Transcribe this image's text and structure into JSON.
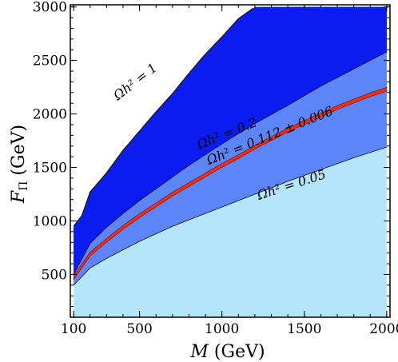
{
  "chart_data": {
    "type": "area",
    "xlabel": "M (GeV)",
    "ylabel": "F_Π (GeV)",
    "xlim": [
      80,
      2020
    ],
    "ylim": [
      100,
      3020
    ],
    "grid": false,
    "x_ticks": [
      {
        "value": 100,
        "label": "100"
      },
      {
        "value": 500,
        "label": "500"
      },
      {
        "value": 1000,
        "label": "1000"
      },
      {
        "value": 1500,
        "label": "1500"
      },
      {
        "value": 2000,
        "label": "2000"
      }
    ],
    "y_ticks": [
      {
        "value": 500,
        "label": "500"
      },
      {
        "value": 1000,
        "label": "1000"
      },
      {
        "value": 1500,
        "label": "1500"
      },
      {
        "value": 2000,
        "label": "2000"
      },
      {
        "value": 2500,
        "label": "2500"
      },
      {
        "value": 3000,
        "label": "3000"
      }
    ],
    "colors": {
      "omega_gt_1": "#0b1cf0",
      "omega_0p2_to_1": "#2f56f5",
      "omega_0p05_to_0p2": "#5b85f8",
      "omega_lt_0p05": "#b3e6fb",
      "relic_band": "#e8301a"
    },
    "series": [
      {
        "name": "Ωh² = 1",
        "x": [
          100,
          150,
          200,
          300,
          400,
          500,
          600,
          700,
          800,
          900,
          1000,
          1100,
          1200
        ],
        "y": [
          950,
          1050,
          1270,
          1450,
          1660,
          1840,
          2020,
          2190,
          2380,
          2560,
          2720,
          2890,
          3000
        ]
      },
      {
        "name": "Ωh² = 0.2",
        "x": [
          100,
          200,
          300,
          400,
          500,
          600,
          700,
          800,
          900,
          1000,
          1200,
          1400,
          1600,
          1800,
          2000
        ],
        "y": [
          500,
          790,
          940,
          1070,
          1190,
          1300,
          1410,
          1520,
          1620,
          1720,
          1910,
          2080,
          2260,
          2420,
          2580
        ]
      },
      {
        "name": "Ωh² = 0.112 ± 0.006",
        "x": [
          100,
          200,
          300,
          400,
          500,
          600,
          700,
          800,
          900,
          1000,
          1100,
          1200,
          1300,
          1400,
          1500,
          1600,
          1700,
          1800,
          1900,
          2000
        ],
        "y": [
          470,
          690,
          820,
          940,
          1050,
          1150,
          1250,
          1340,
          1430,
          1520,
          1600,
          1690,
          1770,
          1850,
          1920,
          1990,
          2060,
          2120,
          2180,
          2230
        ]
      },
      {
        "name": "Ωh² = 0.05",
        "x": [
          100,
          200,
          300,
          400,
          500,
          600,
          700,
          800,
          900,
          1000,
          1200,
          1400,
          1600,
          1800,
          2000
        ],
        "y": [
          400,
          560,
          650,
          730,
          810,
          880,
          950,
          1010,
          1070,
          1130,
          1250,
          1370,
          1480,
          1590,
          1690
        ]
      }
    ],
    "band_halfwidth": 18,
    "annotations": [
      {
        "text": "Ωh² = 1",
        "x": 490,
        "y": 2270,
        "angle": -38
      },
      {
        "text": "Ωh² = 0.2",
        "x": 1040,
        "y": 1780,
        "angle": -22
      },
      {
        "text": "Ωh² = 0.112 ± 0.006",
        "x": 1300,
        "y": 1760,
        "angle": -22
      },
      {
        "text": "Ωh² = 0.05",
        "x": 1430,
        "y": 1300,
        "angle": -18
      }
    ]
  }
}
